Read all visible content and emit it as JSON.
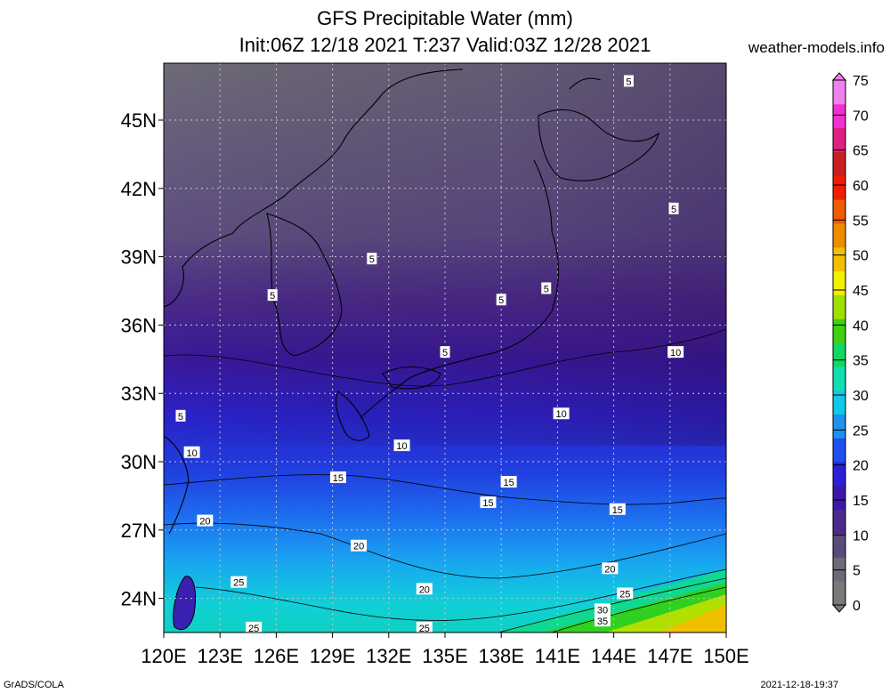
{
  "title": {
    "line1": "GFS Precipitable Water (mm)",
    "line2": "Init:06Z 12/18 2021 T:237 Valid:03Z 12/28 2021"
  },
  "site": "weather-models.info",
  "footer": {
    "left": "GrADS/COLA",
    "right": "2021-12-18-19:37"
  },
  "map": {
    "lon_range": [
      120,
      150
    ],
    "lat_range": [
      22.5,
      47.5
    ],
    "lon_ticks": [
      "120E",
      "123E",
      "126E",
      "129E",
      "132E",
      "135E",
      "138E",
      "141E",
      "144E",
      "147E",
      "150E"
    ],
    "lat_ticks": [
      "24N",
      "27N",
      "30N",
      "33N",
      "36N",
      "39N",
      "42N",
      "45N"
    ],
    "lon_values": [
      120,
      123,
      126,
      129,
      132,
      135,
      138,
      141,
      144,
      147,
      150
    ],
    "lat_values": [
      24,
      27,
      30,
      33,
      36,
      39,
      42,
      45
    ],
    "contour_labels": [
      {
        "text": "5",
        "lon": 144.8,
        "lat": 46.7
      },
      {
        "text": "5",
        "lon": 147.2,
        "lat": 41.1
      },
      {
        "text": "5",
        "lon": 131.1,
        "lat": 38.9
      },
      {
        "text": "5",
        "lon": 125.8,
        "lat": 37.3
      },
      {
        "text": "5",
        "lon": 138.0,
        "lat": 37.1
      },
      {
        "text": "5",
        "lon": 140.4,
        "lat": 37.6
      },
      {
        "text": "5",
        "lon": 135.0,
        "lat": 34.8
      },
      {
        "text": "5",
        "lon": 120.9,
        "lat": 32.0
      },
      {
        "text": "10",
        "lon": 147.3,
        "lat": 34.8
      },
      {
        "text": "10",
        "lon": 141.2,
        "lat": 32.1
      },
      {
        "text": "10",
        "lon": 132.7,
        "lat": 30.7
      },
      {
        "text": "10",
        "lon": 121.5,
        "lat": 30.4
      },
      {
        "text": "15",
        "lon": 129.3,
        "lat": 29.3
      },
      {
        "text": "15",
        "lon": 138.4,
        "lat": 29.1
      },
      {
        "text": "15",
        "lon": 137.3,
        "lat": 28.2
      },
      {
        "text": "15",
        "lon": 144.2,
        "lat": 27.9
      },
      {
        "text": "20",
        "lon": 122.2,
        "lat": 27.4
      },
      {
        "text": "20",
        "lon": 130.4,
        "lat": 26.3
      },
      {
        "text": "20",
        "lon": 143.8,
        "lat": 25.3
      },
      {
        "text": "20",
        "lon": 133.9,
        "lat": 24.4
      },
      {
        "text": "25",
        "lon": 124.0,
        "lat": 24.7
      },
      {
        "text": "25",
        "lon": 144.6,
        "lat": 24.2
      },
      {
        "text": "25",
        "lon": 124.8,
        "lat": 22.7
      },
      {
        "text": "25",
        "lon": 133.9,
        "lat": 22.7
      },
      {
        "text": "30",
        "lon": 143.4,
        "lat": 23.5
      },
      {
        "text": "35",
        "lon": 143.4,
        "lat": 23.0
      }
    ]
  },
  "colorbar": {
    "levels": [
      "0",
      "5",
      "10",
      "15",
      "20",
      "25",
      "30",
      "35",
      "40",
      "45",
      "50",
      "55",
      "60",
      "65",
      "70",
      "75"
    ],
    "colors": [
      "#7a7a7a",
      "#6e6a7a",
      "#5a4a7e",
      "#4a2a8c",
      "#3a18a8",
      "#2a20d8",
      "#1e50f0",
      "#1e90f0",
      "#10c8e8",
      "#10e0b0",
      "#10d860",
      "#40d010",
      "#a0e000",
      "#f0f000",
      "#f0c000",
      "#f08c00",
      "#f05a00",
      "#f01e00",
      "#c82020",
      "#e02080",
      "#f030d0",
      "#f080f0"
    ]
  }
}
